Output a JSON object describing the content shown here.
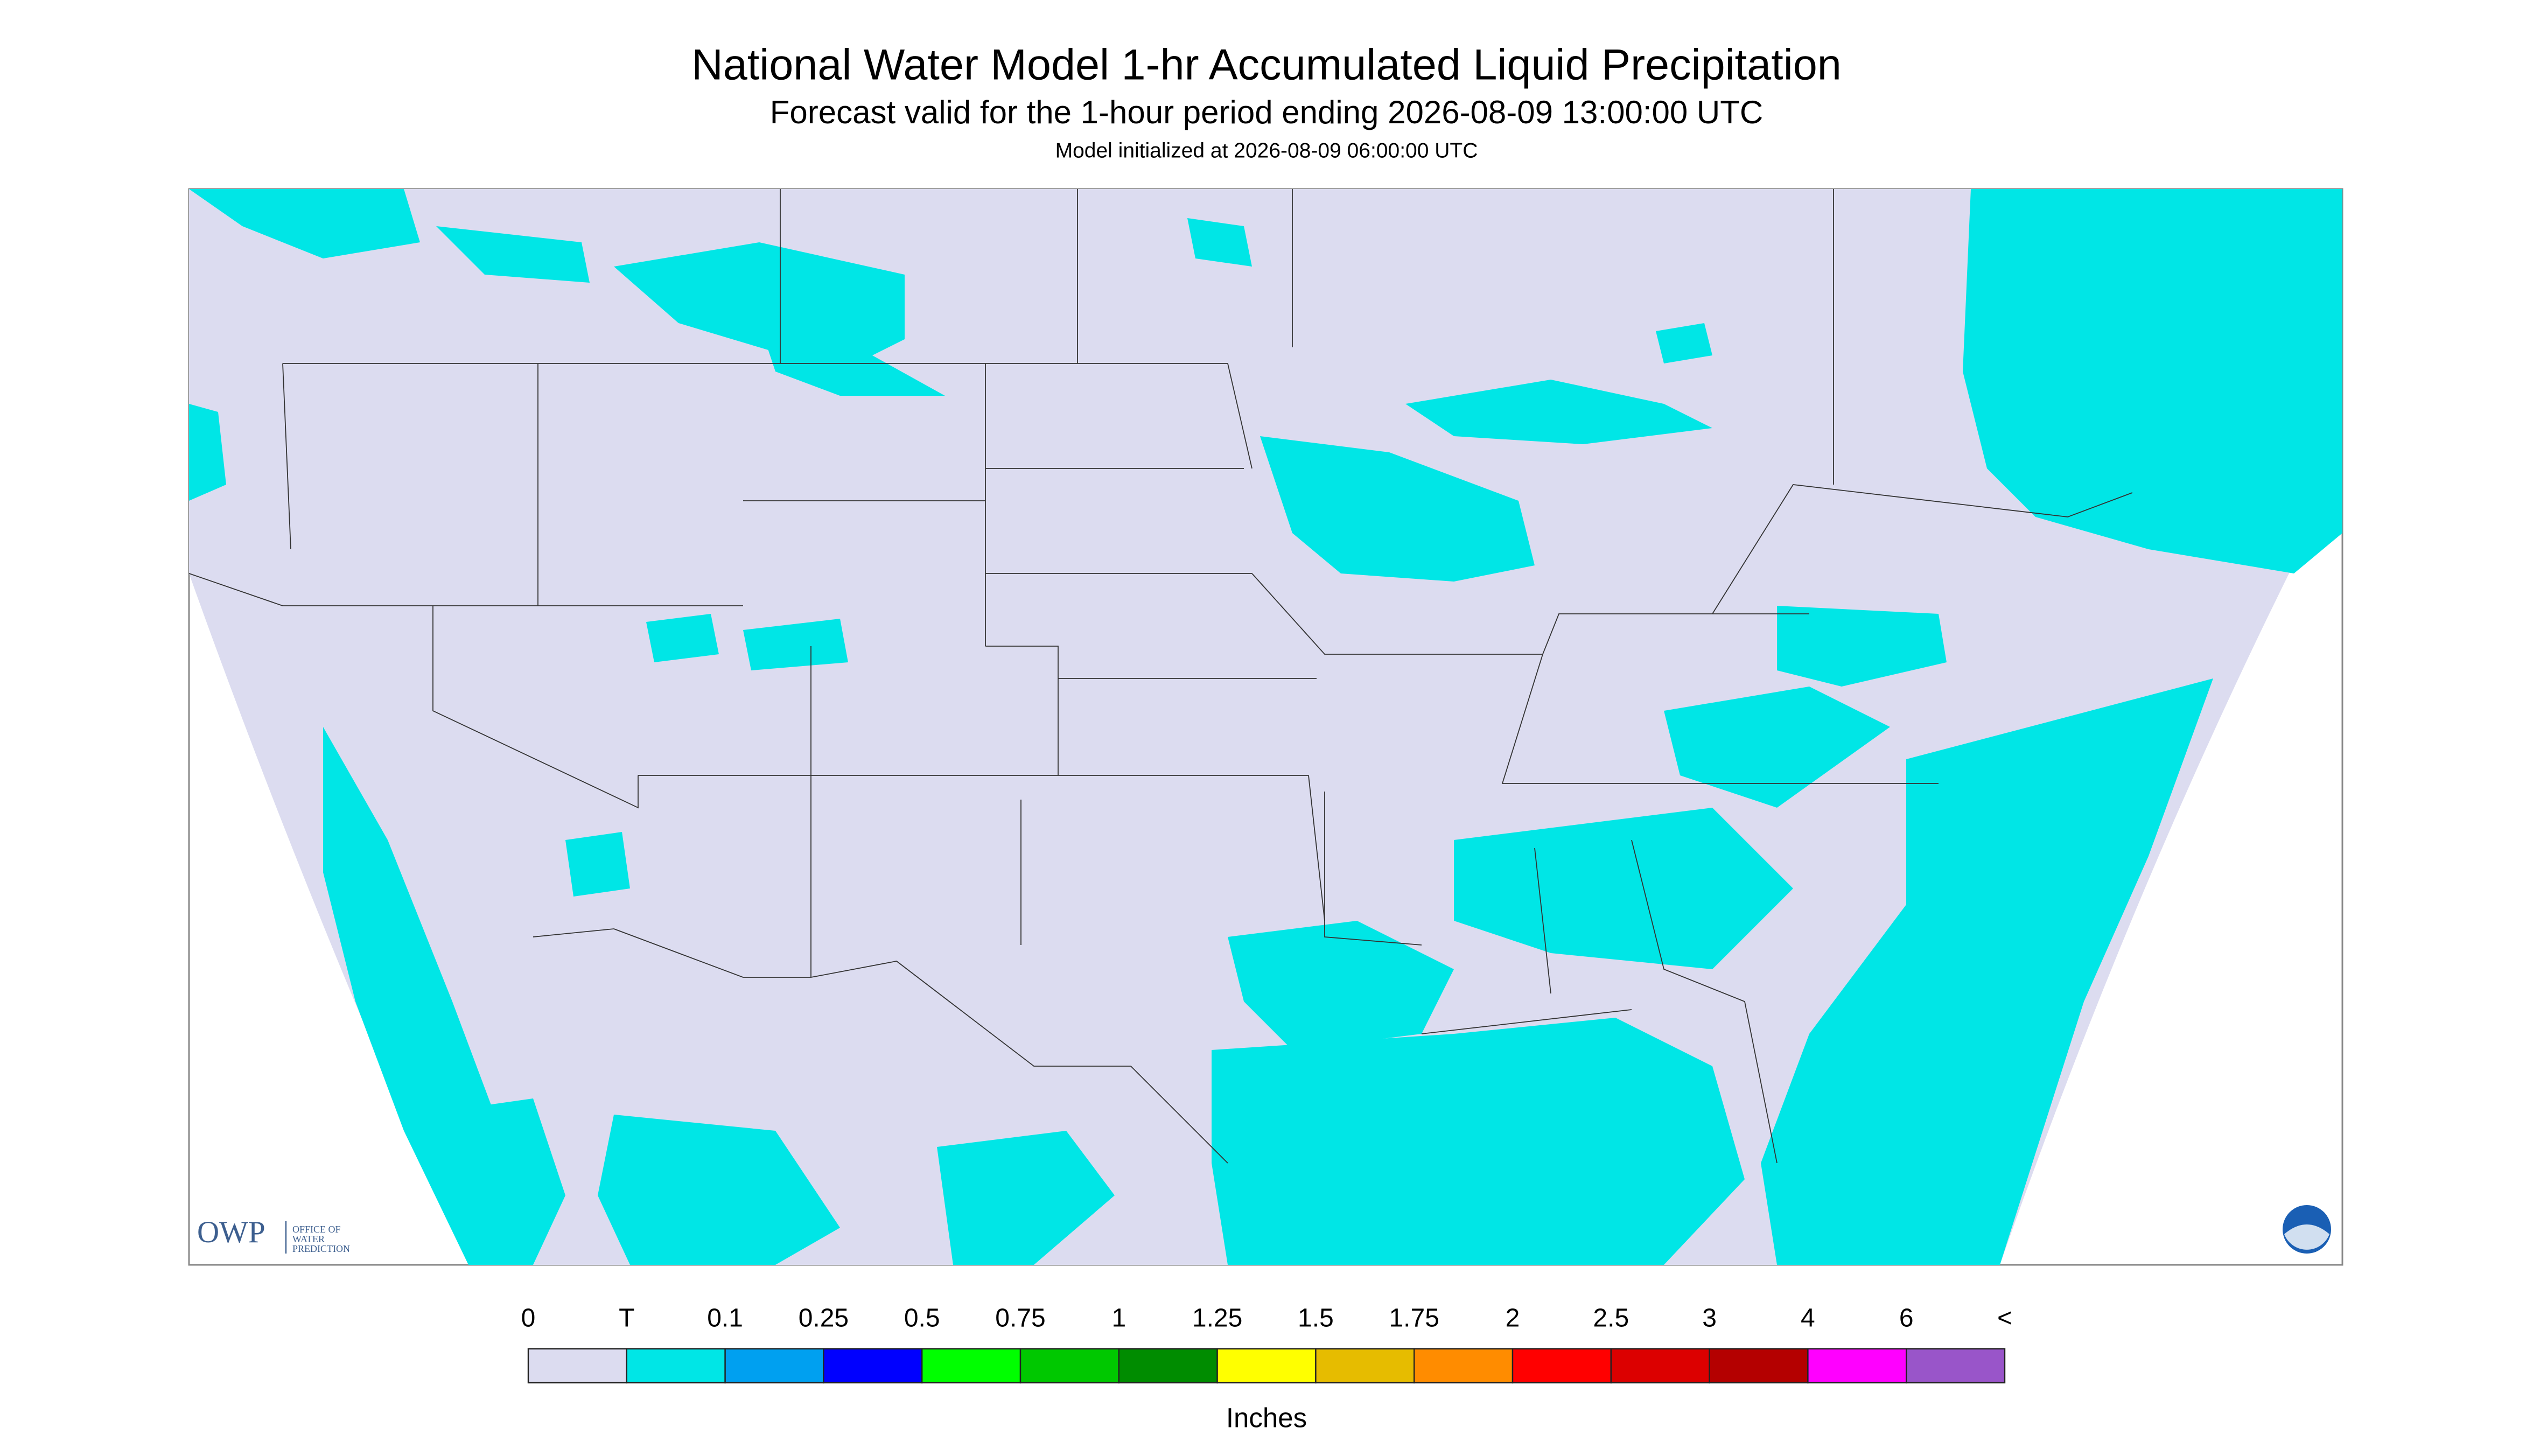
{
  "header": {
    "title": "National Water Model 1-hr Accumulated Liquid Precipitation",
    "subtitle": "Forecast valid for the 1-hour period ending 2026-08-09 13:00:00 UTC",
    "note": "Model initialized at 2026-08-09 06:00:00 UTC"
  },
  "logo": {
    "acronym": "OWP",
    "lines": [
      "OFFICE OF",
      "WATER",
      "PREDICTION"
    ]
  },
  "legend": {
    "labels": [
      "0",
      "T",
      "0.1",
      "0.25",
      "0.5",
      "0.75",
      "1",
      "1.25",
      "1.5",
      "1.75",
      "2",
      "2.5",
      "3",
      "4",
      "6",
      "<"
    ],
    "colors": [
      "#dcdcf0",
      "#00e6e6",
      "#00a0f0",
      "#0000ff",
      "#00ff00",
      "#00c800",
      "#008c00",
      "#ffff00",
      "#e6bc00",
      "#ff8c00",
      "#ff0000",
      "#dc0000",
      "#b40000",
      "#ff00ff",
      "#9955c9"
    ],
    "unit": "Inches"
  }
}
